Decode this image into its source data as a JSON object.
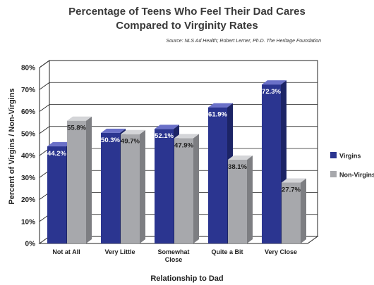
{
  "chart_data": {
    "type": "bar",
    "title_lines": [
      "Percentage of Teens Who Feel Their Dad Cares",
      "Compared to Virginity Rates"
    ],
    "source": "Source: NLS Ad Health; Robert Lerner, Ph.D.  The Heritage Foundation",
    "xlabel": "Relationship to Dad",
    "ylabel": "Percent of Virgins / Non-Virgins",
    "categories": [
      [
        "Not at All"
      ],
      [
        "Very Little"
      ],
      [
        "Somewhat",
        "Close"
      ],
      [
        "Quite a Bit"
      ],
      [
        "Very Close"
      ]
    ],
    "ylim": [
      0,
      80
    ],
    "yticks": [
      0,
      10,
      20,
      30,
      40,
      50,
      60,
      70,
      80
    ],
    "ytick_labels": [
      "0%",
      "10%",
      "20%",
      "30%",
      "40%",
      "50%",
      "60%",
      "70%",
      "80%"
    ],
    "grid": true,
    "legend_position": "right",
    "series": [
      {
        "name": "Virgins",
        "values": [
          44.2,
          50.3,
          52.1,
          61.9,
          72.3
        ],
        "labels": [
          "44.2%",
          "50.3%",
          "52.1%",
          "61.9%",
          "72.3%"
        ],
        "color": "#2b3590",
        "top_color": "#6a70c8",
        "side_color": "#1c2466",
        "label_color": "#ffffff"
      },
      {
        "name": "Non-Virgins",
        "values": [
          55.8,
          49.7,
          47.9,
          38.1,
          27.7
        ],
        "labels": [
          "55.8%",
          "49.7%",
          "47.9%",
          "38.1%",
          "27.7%"
        ],
        "color": "#a7a8ac",
        "top_color": "#d4d5d8",
        "side_color": "#7d7e82",
        "label_color": "#222222"
      }
    ]
  }
}
